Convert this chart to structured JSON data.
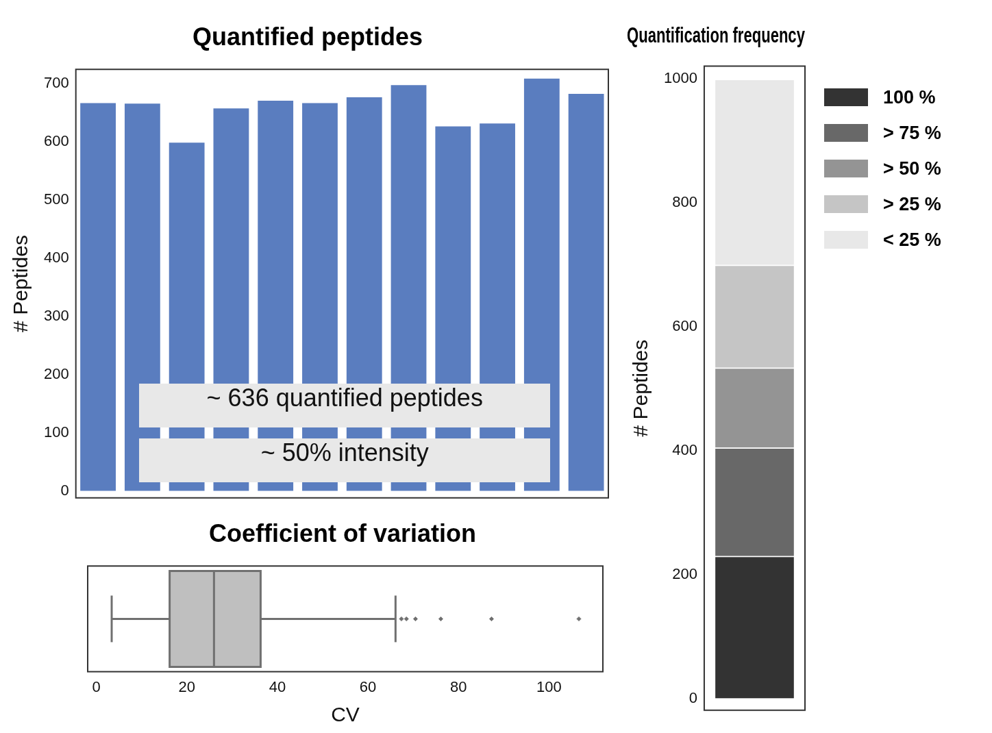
{
  "chart_data": [
    {
      "type": "bar",
      "title": "Quantified peptides",
      "ylabel": "# Peptides",
      "categories": [
        null,
        null,
        null,
        null,
        null,
        null,
        null,
        null,
        null,
        null,
        null,
        null
      ],
      "values": [
        666,
        665,
        598,
        657,
        670,
        666,
        676,
        697,
        626,
        631,
        708,
        682
      ],
      "color": "#5a7dbf",
      "ylim": [
        -12,
        724
      ],
      "yticks": [
        0,
        100,
        200,
        300,
        400,
        500,
        600,
        700
      ],
      "grid": false,
      "tick_labels": "y",
      "legend": false,
      "annotations": [
        "~ 636 quantified peptides",
        "~ 50% intensity"
      ]
    },
    {
      "type": "box",
      "title": "Coefficient of variation",
      "xlabel": "CV",
      "orientation": "horizontal",
      "categories": [
        null
      ],
      "color": "#bfbfbf",
      "boxes": [
        {
          "low": 3.4,
          "q1": 16.2,
          "median": 26.0,
          "q3": 36.3,
          "high": 66.1,
          "outliers": [
            67.4,
            68.5,
            70.5,
            76.1,
            87.3,
            106.6
          ]
        }
      ],
      "xlim": [
        -1.9,
        111.9
      ],
      "xticks": [
        0,
        20,
        40,
        60,
        80,
        100
      ],
      "grid": false,
      "tick_labels": "x"
    },
    {
      "type": "bar",
      "title": "Quantification frequency",
      "ylabel": "# Peptides",
      "categories": [
        null
      ],
      "stacked": true,
      "legend": "right",
      "series": [
        {
          "name": "100 %",
          "color": "#333333",
          "values": [
            230
          ]
        },
        {
          "name": "> 75 %",
          "color": "#686868",
          "values": [
            175
          ]
        },
        {
          "name": "> 50 %",
          "color": "#949494",
          "values": [
            129
          ]
        },
        {
          "name": "> 25 %",
          "color": "#c5c5c5",
          "values": [
            166
          ]
        },
        {
          "name": "< 25 %",
          "color": "#e8e8e8",
          "values": [
            300
          ]
        }
      ],
      "ylim": [
        -19,
        1021
      ],
      "yticks": [
        0,
        200,
        400,
        600,
        800,
        1000
      ],
      "grid": false,
      "tick_labels": "y"
    }
  ]
}
